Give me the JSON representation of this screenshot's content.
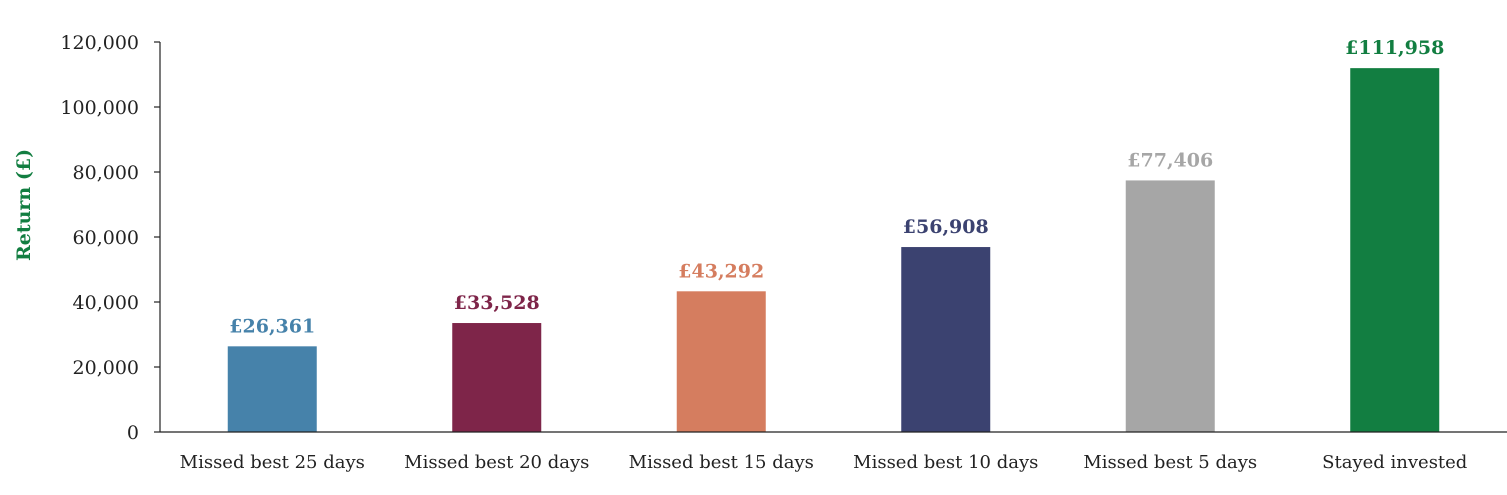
{
  "chart_data": {
    "type": "bar",
    "ylabel": "Return (£)",
    "xlabel": "",
    "ylim": [
      0,
      120000
    ],
    "yticks": [
      0,
      20000,
      40000,
      60000,
      80000,
      100000,
      120000
    ],
    "ytick_labels": [
      "0",
      "20,000",
      "40,000",
      "60,000",
      "80,000",
      "100,000",
      "120,000"
    ],
    "grid": false,
    "categories": [
      "Missed best 25 days",
      "Missed best 20 days",
      "Missed best 15 days",
      "Missed best 10 days",
      "Missed best 5 days",
      "Stayed invested"
    ],
    "values": [
      26361,
      33528,
      43292,
      56908,
      77406,
      111958
    ],
    "value_labels": [
      "£26,361",
      "£33,528",
      "£43,292",
      "£56,908",
      "£77,406",
      "£111,958"
    ],
    "colors": [
      "#4682AA",
      "#7E2549",
      "#D57D5F",
      "#3B4270",
      "#A6A6A6",
      "#127E41"
    ],
    "ylabel_color": "#127E41",
    "axis_color": "#222222",
    "tick_text_color": "#222222"
  }
}
